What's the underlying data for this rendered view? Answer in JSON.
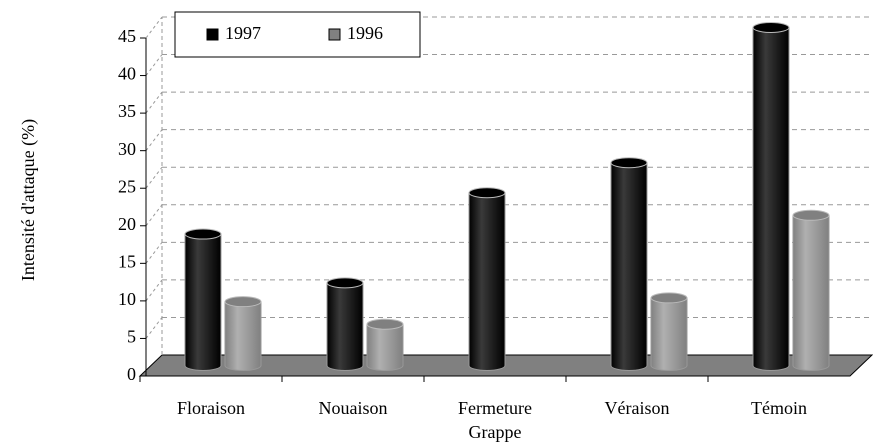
{
  "chart_data": {
    "type": "bar",
    "y_label": "Intensité d'attaque (%)",
    "categories": [
      "Floraison",
      "Nouaison",
      "Fermeture Grappe",
      "Véraison",
      "Témoin"
    ],
    "series": [
      {
        "name": "1997",
        "color": "#000000",
        "values": [
          17.5,
          11,
          23,
          27,
          45
        ]
      },
      {
        "name": "1996",
        "color": "#808080",
        "values": [
          8.5,
          5.5,
          null,
          9,
          20
        ]
      }
    ],
    "ylim": [
      0,
      45
    ],
    "yticks": [
      0,
      5,
      10,
      15,
      20,
      25,
      30,
      35,
      40,
      45
    ],
    "grid": true,
    "legend": "top-left"
  }
}
